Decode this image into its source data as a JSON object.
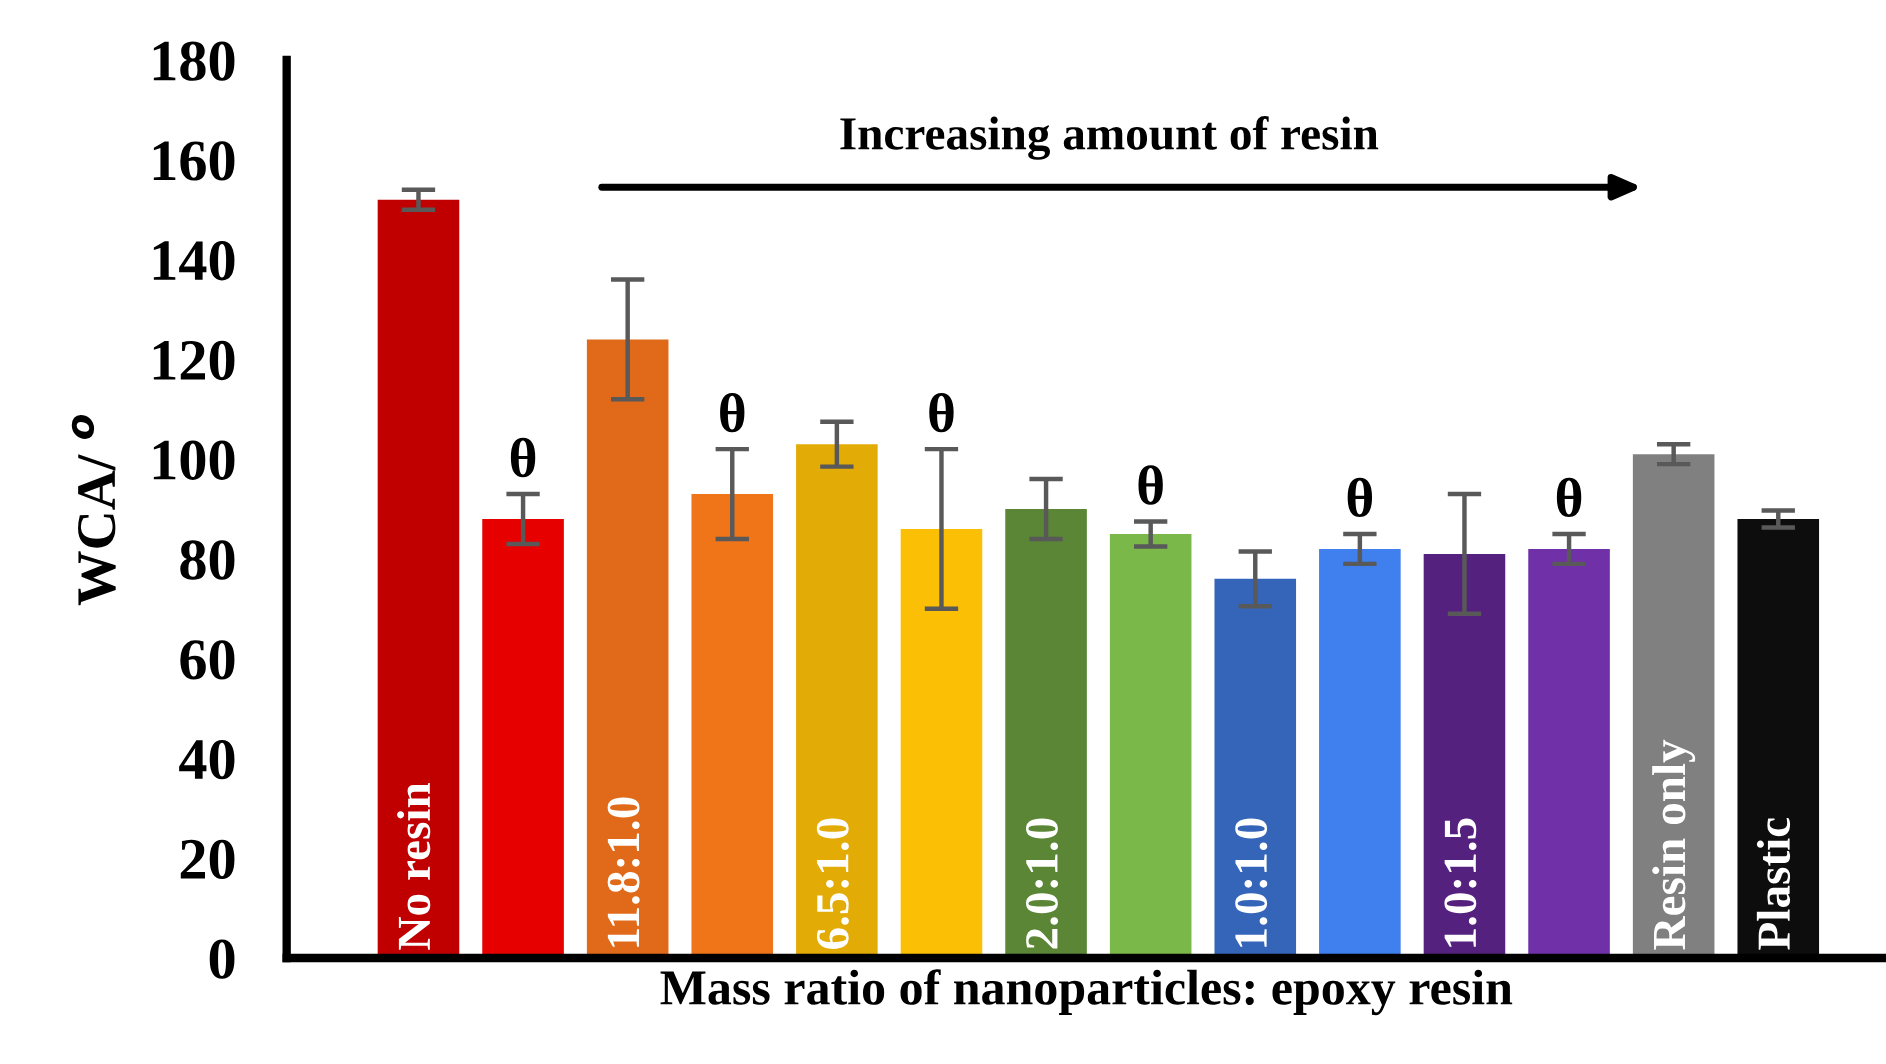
{
  "chart_data": {
    "type": "bar",
    "xlabel": "Mass ratio of nanoparticles: epoxy resin",
    "ylabel": "WCA/ $^{o}$",
    "categories": [
      "No resin",
      null,
      "11.8:1.0",
      null,
      "6.5:1.0",
      null,
      "2.0:1.0",
      null,
      "1.0:1.0",
      null,
      "1.0:1.5",
      null,
      "Resin only",
      "Plastic"
    ],
    "values": [
      152,
      88,
      124,
      93,
      103,
      86,
      90,
      85,
      76,
      82,
      81,
      82,
      101,
      88
    ],
    "errors": [
      2,
      5,
      12,
      9,
      4.5,
      16,
      6,
      2.5,
      5.5,
      3,
      12,
      3,
      2,
      1.7
    ],
    "colors": [
      "#c00000",
      "#e60000",
      "#e06a1a",
      "#f07418",
      "#e2ab06",
      "#fbbf06",
      "#5a8636",
      "#7ab84a",
      "#3565b8",
      "#3f7fee",
      "#55217e",
      "#7030a8",
      "#808080",
      "#0d0d0d"
    ],
    "value_labels": [
      null,
      "θ",
      null,
      "θ",
      null,
      "θ",
      null,
      "θ",
      null,
      "θ",
      null,
      "θ",
      null,
      null
    ],
    "annotations": [
      "Increasing amount of resin"
    ],
    "ylim": [
      0,
      180
    ],
    "yticks": [
      0,
      20,
      40,
      60,
      80,
      100,
      120,
      140,
      160,
      180
    ],
    "grid": false,
    "legend": false
  }
}
